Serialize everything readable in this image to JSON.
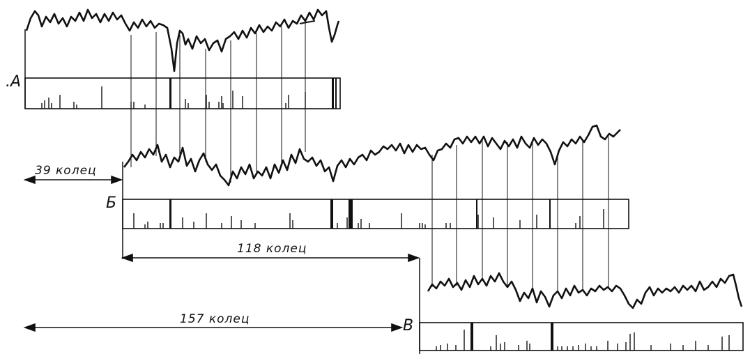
{
  "segments": [
    {
      "id": "A",
      "label": ".А"
    },
    {
      "id": "B",
      "label": "Б"
    },
    {
      "id": "V",
      "label": "В"
    }
  ],
  "offsets": [
    {
      "label": "39 колец"
    },
    {
      "label": "118 колец"
    },
    {
      "label": "157 колец"
    }
  ]
}
